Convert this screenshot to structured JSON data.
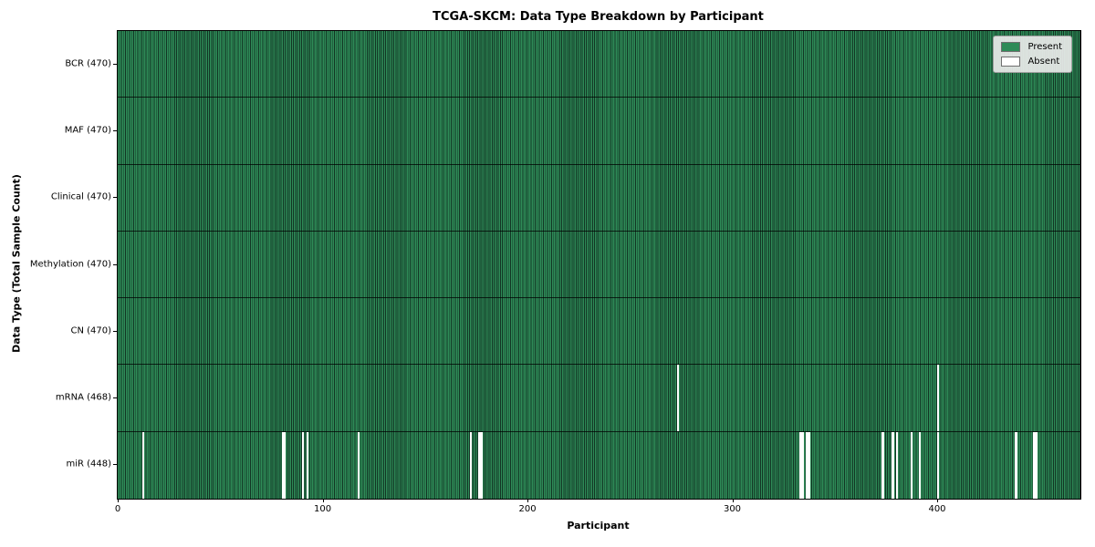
{
  "chart_data": {
    "type": "heatmap",
    "title": "TCGA-SKCM: Data Type Breakdown by Participant",
    "xlabel": "Participant",
    "ylabel": "Data Type (Total Sample Count)",
    "n_participants": 470,
    "x_ticks": [
      0,
      100,
      200,
      300,
      400
    ],
    "legend": {
      "position": "upper right",
      "entries": [
        {
          "label": "Present",
          "color": "#2e8b57"
        },
        {
          "label": "Absent",
          "color": "#ffffff"
        }
      ]
    },
    "colors": {
      "present_face": "#2e8b57",
      "present_edge": "#123524",
      "absent": "#ffffff",
      "row_divider": "#1a1a1a",
      "spine": "#000000"
    },
    "rows": [
      {
        "label": "BCR (470)",
        "data_type": "BCR",
        "total_samples": 470,
        "absent_participants": []
      },
      {
        "label": "MAF (470)",
        "data_type": "MAF",
        "total_samples": 470,
        "absent_participants": []
      },
      {
        "label": "Clinical (470)",
        "data_type": "Clinical",
        "total_samples": 470,
        "absent_participants": []
      },
      {
        "label": "Methylation (470)",
        "data_type": "Methylation",
        "total_samples": 470,
        "absent_participants": []
      },
      {
        "label": "CN (470)",
        "data_type": "CN",
        "total_samples": 470,
        "absent_participants": []
      },
      {
        "label": "mRNA (468)",
        "data_type": "mRNA",
        "total_samples": 468,
        "absent_participants": [
          273,
          400
        ]
      },
      {
        "label": "miR (448)",
        "data_type": "miR",
        "total_samples": 448,
        "absent_participants": [
          12,
          80,
          81,
          90,
          92,
          117,
          172,
          176,
          177,
          333,
          334,
          336,
          337,
          373,
          378,
          380,
          387,
          391,
          400,
          438,
          447,
          448
        ]
      }
    ]
  }
}
